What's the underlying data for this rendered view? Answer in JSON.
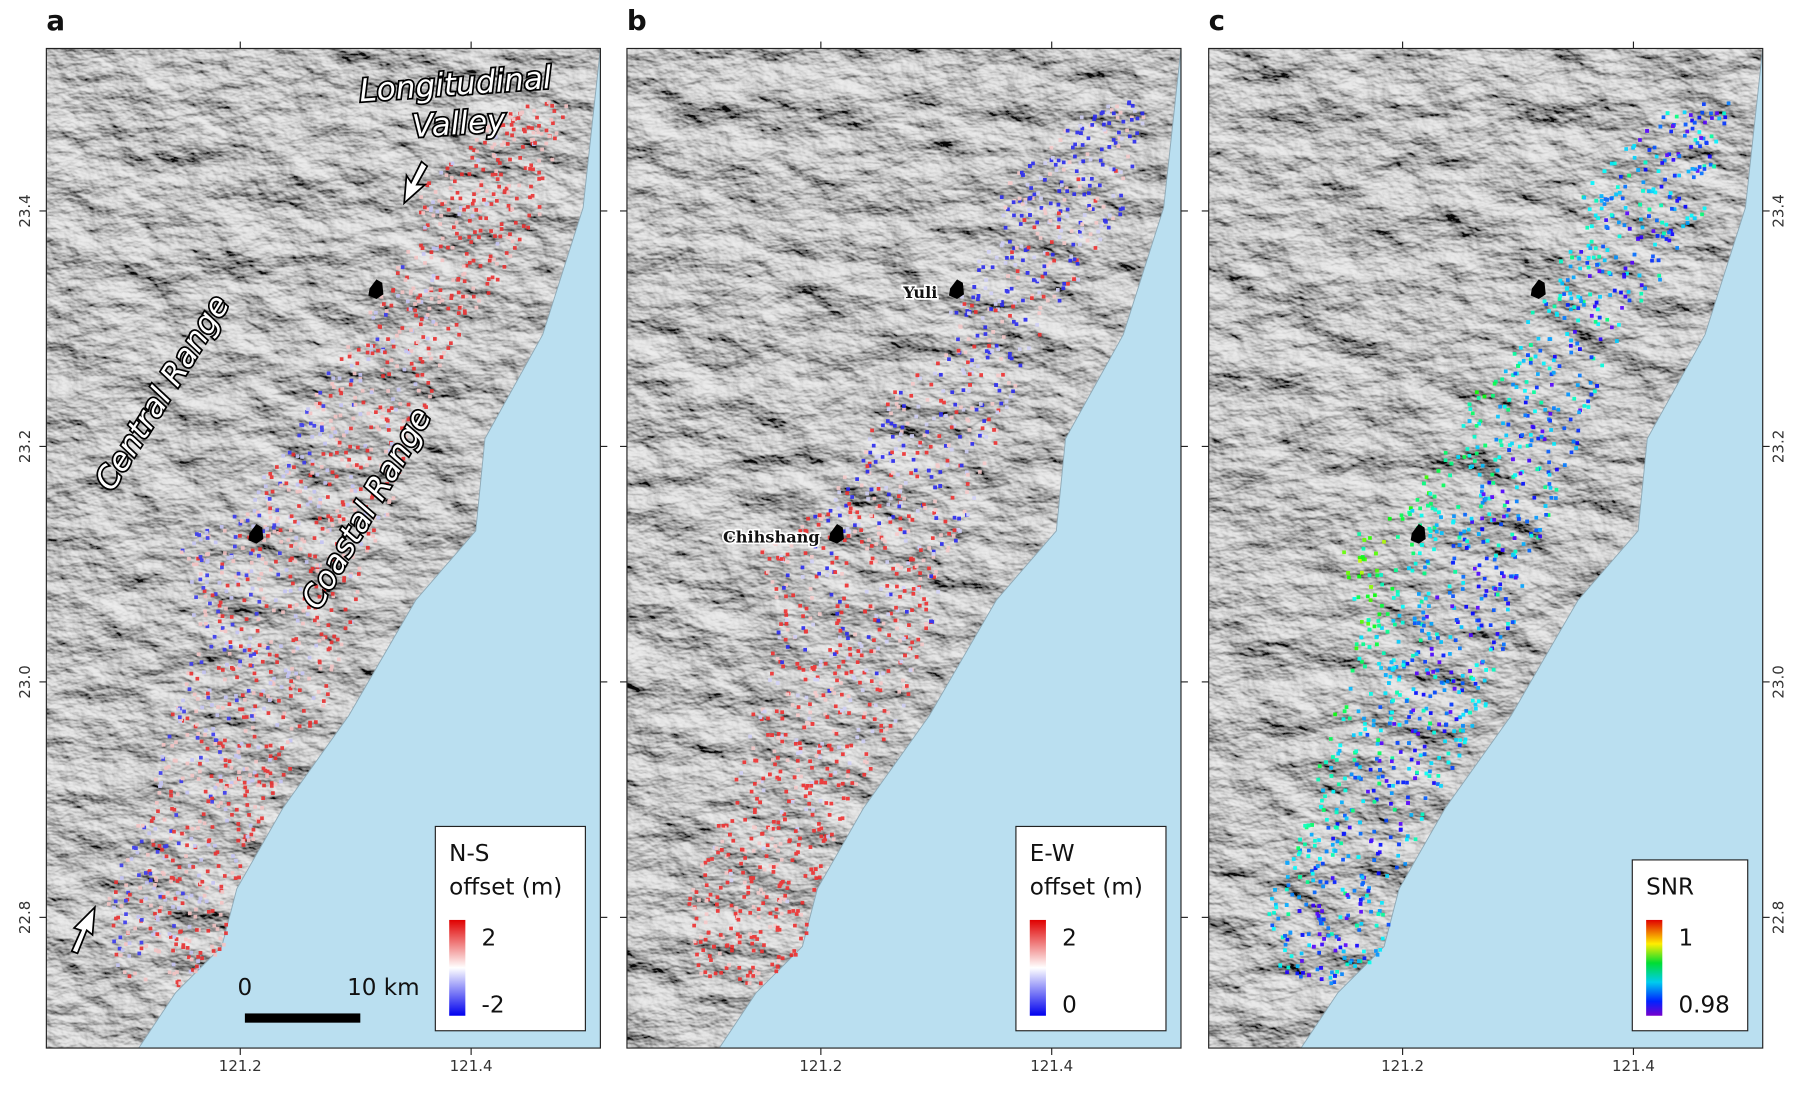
{
  "xlim": [
    121.032,
    121.512
  ],
  "ylim": [
    22.689,
    23.538
  ],
  "ticks": {
    "x": [
      121.2,
      121.4
    ],
    "y": [
      23.4,
      23.2,
      {
        "value": 23.0,
        "label": "23.0"
      },
      22.8
    ]
  },
  "panels": [
    {
      "label": "a",
      "legend": {
        "title": [
          "N-S",
          "offset (m)"
        ],
        "max": "2",
        "min": "-2"
      }
    },
    {
      "label": "b",
      "legend": {
        "title": [
          "E-W",
          "offset (m)"
        ],
        "max": "2",
        "min": "0"
      }
    },
    {
      "label": "c",
      "legend": {
        "title": [
          "SNR"
        ],
        "max": "1",
        "min": "0.98"
      }
    }
  ],
  "annotations": {
    "longitudinal_valley": [
      "Longitudinal",
      "Valley"
    ],
    "central_range": "Central Range",
    "coastal_range": "Coastal Range"
  },
  "towns": [
    "Yuli",
    "Chihshang"
  ],
  "scale_bar": {
    "start": "0",
    "end": "10 km"
  }
}
